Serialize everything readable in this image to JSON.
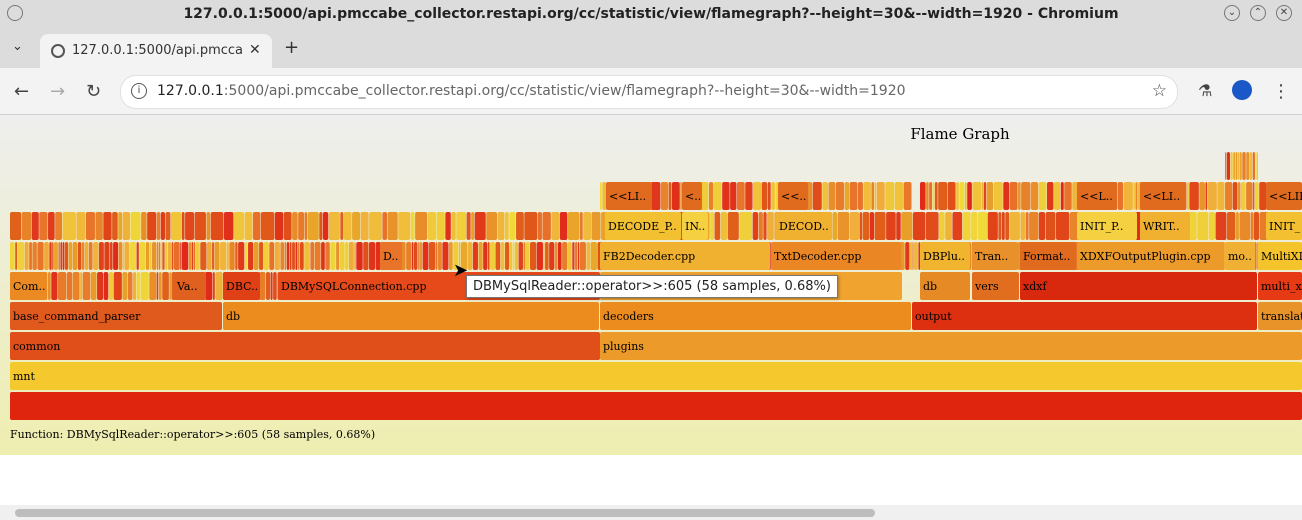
{
  "window": {
    "title": "127.0.0.1:5000/api.pmccabe_collector.restapi.org/cc/statistic/view/flamegraph?--height=30&--width=1920 - Chromium"
  },
  "tab": {
    "label": "127.0.0.1:5000/api.pmcca"
  },
  "omnibox": {
    "host": "127.0.0.1",
    "rest": ":5000/api.pmccabe_collector.restapi.org/cc/statistic/view/flamegraph?--height=30&--width=1920"
  },
  "flamegraph": {
    "title": "Flame Graph",
    "status": "Function: DBMySqlReader::operator>>:605 (58 samples, 0.68%)",
    "tooltip": "DBMySqlReader::operator>>:605 (58 samples, 0.68%)",
    "frames": {
      "root": "",
      "mnt": "mnt",
      "common": "common",
      "plugins": "plugins",
      "base_command_parser": "base_command_parser",
      "db": "db",
      "decoders": "decoders",
      "output": "output",
      "translato": "translato",
      "com": "Com..",
      "va": "Va..",
      "dbc": "DBC..",
      "dbmysqlconnection": "DBMySQLConnection.cpp",
      "db2": "db",
      "vers": "vers",
      "xdxf": "xdxf",
      "multi_x": "multi_x",
      "d": "D..",
      "fb2decoder": "FB2Decoder.cpp",
      "txtdecoder": "TxtDecoder.cpp",
      "dbplu": "DBPlu..",
      "tran": "Tran..",
      "format": "Format..",
      "xdxfoutput": "XDXFOutputPlugin.cpp",
      "mo": "mo..",
      "multix": "MultiXD",
      "decode_p": "DECODE_P..",
      "in": "IN..",
      "decod": "DECOD..",
      "init_p": "INIT_P..",
      "writ": "WRIT..",
      "init_": "INIT_",
      "li1": "<<LI..",
      "lt1": "<..",
      "lt2": "<<..",
      "li2": "<<L..",
      "li3": "<<LI..",
      "li4": "<<LIF"
    }
  },
  "colors": {
    "bg_top": "#eeeeee",
    "bg_bottom": "#eeeeb0",
    "frame_red": "#e0250e",
    "frame_orange": "#ec8c1f",
    "frame_yellow": "#f5c92d"
  }
}
